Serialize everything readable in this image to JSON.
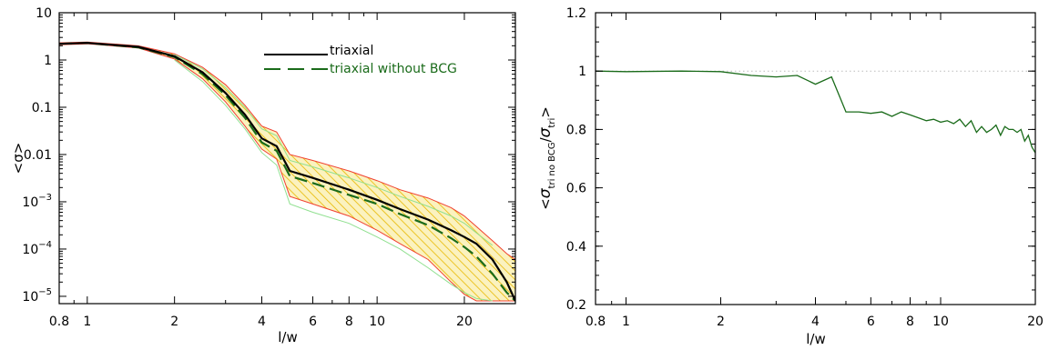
{
  "chart_data": [
    {
      "type": "line",
      "xlabel": "l/w",
      "ylabel": "<σ>",
      "xscale": "log",
      "yscale": "log",
      "xlim": [
        0.8,
        30
      ],
      "ylim": [
        7e-06,
        10
      ],
      "xticks": [
        {
          "v": 0.8,
          "label": "0.8"
        },
        {
          "v": 1,
          "label": "1"
        },
        {
          "v": 2,
          "label": "2"
        },
        {
          "v": 4,
          "label": "4"
        },
        {
          "v": 6,
          "label": "6"
        },
        {
          "v": 8,
          "label": "8"
        },
        {
          "v": 10,
          "label": "10"
        },
        {
          "v": 20,
          "label": "20"
        }
      ],
      "yticks": [
        {
          "v": 10,
          "base": "10",
          "exp": ""
        },
        {
          "v": 1,
          "base": "1",
          "exp": ""
        },
        {
          "v": 0.1,
          "base": "0.1",
          "exp": ""
        },
        {
          "v": 0.01,
          "base": "0.01",
          "exp": ""
        },
        {
          "v": 0.001,
          "base": "10",
          "exp": "−3"
        },
        {
          "v": 0.0001,
          "base": "10",
          "exp": "−4"
        },
        {
          "v": 1e-05,
          "base": "10",
          "exp": "−5"
        }
      ],
      "legend": {
        "placement": "top-right"
      },
      "series": [
        {
          "name": "triaxial",
          "color": "#000000",
          "style": "solid",
          "x": [
            0.8,
            1.0,
            1.5,
            2.0,
            2.5,
            3.0,
            3.5,
            4.0,
            4.5,
            5.0,
            6.0,
            8.0,
            10.0,
            12.0,
            15.0,
            18.0,
            20.0,
            22.0,
            25.0,
            28.0,
            30.0
          ],
          "y": [
            2.2,
            2.3,
            1.9,
            1.2,
            0.55,
            0.2,
            0.07,
            0.022,
            0.015,
            0.0045,
            0.0032,
            0.0018,
            0.0011,
            0.0007,
            0.00042,
            0.00025,
            0.00018,
            0.00013,
            6e-05,
            2e-05,
            8e-06
          ]
        },
        {
          "name": "triaxial without BCG",
          "color": "#1a6b1a",
          "style": "dashed",
          "x": [
            0.8,
            1.0,
            1.5,
            2.0,
            2.5,
            3.0,
            3.5,
            4.0,
            4.5,
            5.0,
            6.0,
            8.0,
            10.0,
            12.0,
            15.0,
            18.0,
            20.0,
            22.0,
            25.0,
            28.0,
            30.0
          ],
          "y": [
            2.2,
            2.3,
            1.85,
            1.15,
            0.5,
            0.18,
            0.06,
            0.018,
            0.012,
            0.0035,
            0.0025,
            0.0014,
            0.0009,
            0.00055,
            0.00032,
            0.00017,
            0.00011,
            7e-05,
            3e-05,
            1.2e-05,
            8e-06
          ]
        }
      ],
      "bands": [
        {
          "color": "#f04030",
          "hatch": "#e8b800",
          "fill": "#f7e88a",
          "x": [
            0.8,
            1.0,
            1.5,
            2.0,
            2.5,
            3.0,
            3.5,
            4.0,
            4.5,
            5.0,
            6.0,
            8.0,
            10.0,
            12.0,
            15.0,
            18.0,
            20.0,
            22.0,
            25.0,
            28.0,
            30.0
          ],
          "upper": [
            2.3,
            2.4,
            2.0,
            1.35,
            0.7,
            0.3,
            0.11,
            0.04,
            0.03,
            0.01,
            0.0075,
            0.0045,
            0.0028,
            0.0018,
            0.0012,
            0.00075,
            0.0005,
            0.0003,
            0.00015,
            8e-05,
            6e-05
          ],
          "lower": [
            2.1,
            2.2,
            1.8,
            1.05,
            0.4,
            0.13,
            0.04,
            0.013,
            0.008,
            0.0013,
            0.0009,
            0.0005,
            0.00025,
            0.00013,
            6e-05,
            2e-05,
            1.1e-05,
            8e-06,
            8e-06,
            8e-06,
            8e-06
          ]
        },
        {
          "color": "#90e090",
          "x": [
            2.0,
            2.5,
            3.0,
            3.5,
            4.0,
            4.5,
            5.0,
            6.0,
            8.0,
            10.0,
            12.0,
            15.0,
            18.0,
            20.0,
            22.0,
            25.0
          ],
          "upper": [
            1.3,
            0.65,
            0.26,
            0.1,
            0.035,
            0.025,
            0.0075,
            0.0055,
            0.0032,
            0.002,
            0.0013,
            0.0008,
            0.0005,
            0.00035,
            0.00022,
            0.00012
          ],
          "lower": [
            1.0,
            0.35,
            0.11,
            0.035,
            0.011,
            0.006,
            0.0009,
            0.0006,
            0.00035,
            0.00018,
            0.0001,
            4e-05,
            1.8e-05,
            1.2e-05,
            9e-06,
            8e-06
          ]
        }
      ]
    },
    {
      "type": "line",
      "xlabel": "l/w",
      "ylabel": "<σtri no BCG/σtri>",
      "ylabel_parts": {
        "open": "<",
        "sym1": "σ",
        "sub1": "tri no BCG",
        "slash": "/",
        "sym2": "σ",
        "sub2": "tri",
        "close": ">"
      },
      "xscale": "log",
      "yscale": "linear",
      "xlim": [
        0.8,
        20
      ],
      "ylim": [
        0.2,
        1.2
      ],
      "xticks": [
        {
          "v": 0.8,
          "label": "0.8"
        },
        {
          "v": 1,
          "label": "1"
        },
        {
          "v": 2,
          "label": "2"
        },
        {
          "v": 4,
          "label": "4"
        },
        {
          "v": 6,
          "label": "6"
        },
        {
          "v": 8,
          "label": "8"
        },
        {
          "v": 10,
          "label": "10"
        },
        {
          "v": 20,
          "label": "20"
        }
      ],
      "yticks": [
        {
          "v": 0.2,
          "label": "0.2"
        },
        {
          "v": 0.4,
          "label": "0.4"
        },
        {
          "v": 0.6,
          "label": "0.6"
        },
        {
          "v": 0.8,
          "label": "0.8"
        },
        {
          "v": 1,
          "label": "1"
        },
        {
          "v": 1.2,
          "label": "1.2"
        }
      ],
      "reference_line": {
        "y": 1.0,
        "color": "#bbbbbb",
        "style": "dotted"
      },
      "series": [
        {
          "color": "#1a6b1a",
          "style": "solid",
          "x": [
            0.8,
            1.0,
            1.5,
            2.0,
            2.5,
            3.0,
            3.5,
            4.0,
            4.5,
            5.0,
            5.5,
            6.0,
            6.5,
            7.0,
            7.5,
            8.0,
            8.5,
            9.0,
            9.5,
            10.0,
            10.5,
            11.0,
            11.5,
            12.0,
            12.5,
            13.0,
            13.5,
            14.0,
            14.5,
            15.0,
            15.5,
            16.0,
            16.5,
            17.0,
            17.5,
            18.0,
            18.5,
            19.0,
            19.5,
            20.0
          ],
          "y": [
            1.0,
            0.998,
            1.0,
            0.998,
            0.985,
            0.98,
            0.985,
            0.955,
            0.98,
            0.86,
            0.86,
            0.855,
            0.86,
            0.845,
            0.86,
            0.85,
            0.84,
            0.83,
            0.835,
            0.825,
            0.83,
            0.82,
            0.835,
            0.81,
            0.83,
            0.79,
            0.81,
            0.79,
            0.8,
            0.815,
            0.78,
            0.81,
            0.8,
            0.8,
            0.79,
            0.8,
            0.76,
            0.78,
            0.74,
            0.72
          ]
        }
      ]
    }
  ]
}
